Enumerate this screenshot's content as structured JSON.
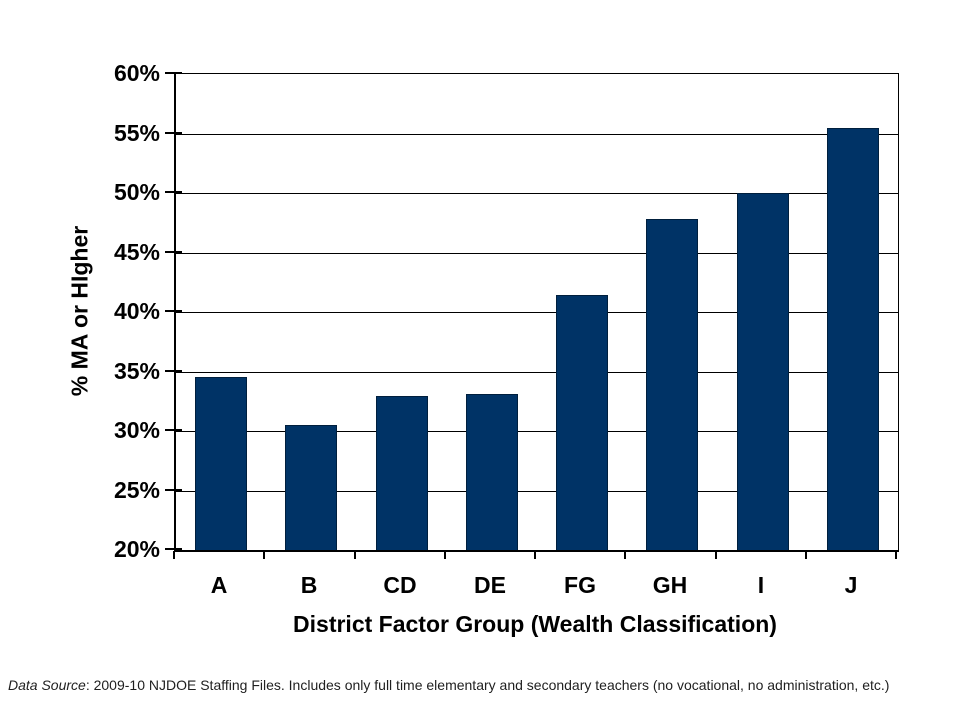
{
  "chart_data": {
    "type": "bar",
    "categories": [
      "A",
      "B",
      "CD",
      "DE",
      "FG",
      "GH",
      "I",
      "J"
    ],
    "values": [
      34.5,
      30.5,
      32.9,
      33.1,
      41.4,
      47.8,
      50.0,
      55.5
    ],
    "title": "",
    "xlabel": "District Factor Group (Wealth Classification)",
    "ylabel": "% MA or HIgher",
    "ylim": [
      20,
      60
    ],
    "ytick_step": 5,
    "ytick_labels_top_to_bottom": [
      "60%",
      "55%",
      "50%",
      "45%",
      "40%",
      "35%",
      "30%",
      "25%",
      "20%"
    ],
    "grid": true,
    "legend_position": "none",
    "bar_color": "#003366",
    "bar_border_color": "#001f3d",
    "axis_color": "#000000"
  },
  "footnote": {
    "italic_prefix": "Data Source",
    "rest": ": 2009-10 NJDOE Staffing Files. Includes only full time elementary and secondary teachers (no vocational, no administration, etc.)"
  }
}
